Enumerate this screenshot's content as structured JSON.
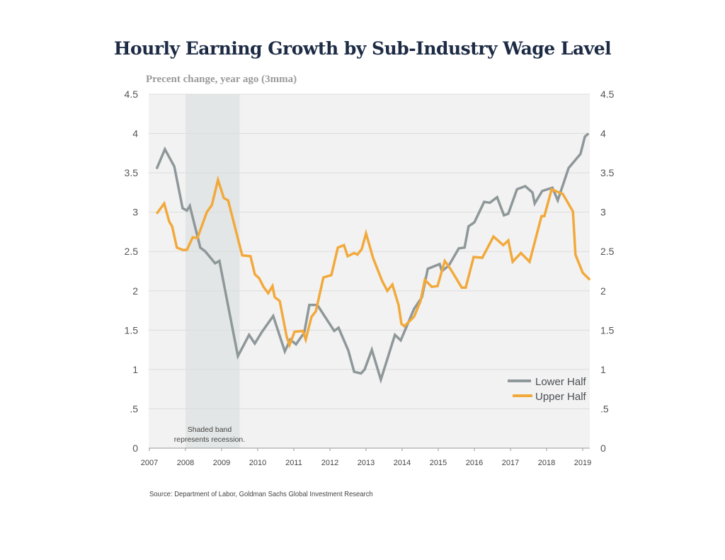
{
  "chart_data": {
    "type": "line",
    "title": "Hourly Earning Growth by Sub-Industry Wage Lavel",
    "subtitle": "Precent change, year ago (3mma)",
    "source": "Source: Department of Labor, Goldman Sachs Global Investment Research",
    "xlabel": "",
    "ylabel": "",
    "xlim": [
      2007,
      2019.2
    ],
    "ylim": [
      0,
      4.5
    ],
    "grid": true,
    "legend_position": "bottom-right",
    "x_ticks": [
      "2007",
      "2008",
      "2009",
      "2010",
      "2011",
      "2012",
      "2013",
      "2014",
      "2015",
      "2016",
      "2017",
      "2018",
      "2019"
    ],
    "y_ticks_left": [
      "0",
      ".5",
      "1",
      "1.5",
      "2",
      "2.5",
      "3",
      "3.5",
      "4",
      "4.5"
    ],
    "y_ticks_right": [
      "0",
      ".5",
      "1",
      "1.5",
      "2",
      "2.5",
      "3",
      "3.5",
      "4",
      "4.5"
    ],
    "y_tick_values": [
      0,
      0.5,
      1,
      1.5,
      2,
      2.5,
      3,
      3.5,
      4,
      4.5
    ],
    "recession": {
      "start": 2008.0,
      "end": 2009.5,
      "label_line1": "Shaded band",
      "label_line2": "represents recession."
    },
    "series": [
      {
        "name": "Lower Half",
        "color": "#8e9799",
        "points": [
          [
            2007.2,
            3.55
          ],
          [
            2007.43,
            3.8
          ],
          [
            2007.69,
            3.58
          ],
          [
            2007.92,
            3.05
          ],
          [
            2008.04,
            3.02
          ],
          [
            2008.12,
            3.08
          ],
          [
            2008.41,
            2.55
          ],
          [
            2008.55,
            2.5
          ],
          [
            2008.82,
            2.35
          ],
          [
            2008.94,
            2.38
          ],
          [
            2009.45,
            1.17
          ],
          [
            2009.76,
            1.44
          ],
          [
            2009.92,
            1.33
          ],
          [
            2010.12,
            1.48
          ],
          [
            2010.43,
            1.68
          ],
          [
            2010.75,
            1.23
          ],
          [
            2010.9,
            1.38
          ],
          [
            2011.06,
            1.32
          ],
          [
            2011.29,
            1.47
          ],
          [
            2011.43,
            1.82
          ],
          [
            2011.65,
            1.82
          ],
          [
            2012.12,
            1.49
          ],
          [
            2012.24,
            1.53
          ],
          [
            2012.51,
            1.24
          ],
          [
            2012.67,
            0.97
          ],
          [
            2012.86,
            0.95
          ],
          [
            2012.96,
            1.0
          ],
          [
            2013.16,
            1.25
          ],
          [
            2013.41,
            0.87
          ],
          [
            2013.8,
            1.44
          ],
          [
            2013.96,
            1.37
          ],
          [
            2014.33,
            1.77
          ],
          [
            2014.55,
            1.92
          ],
          [
            2014.71,
            2.28
          ],
          [
            2015.04,
            2.34
          ],
          [
            2015.1,
            2.25
          ],
          [
            2015.29,
            2.32
          ],
          [
            2015.57,
            2.54
          ],
          [
            2015.73,
            2.55
          ],
          [
            2015.84,
            2.82
          ],
          [
            2016.0,
            2.87
          ],
          [
            2016.27,
            3.13
          ],
          [
            2016.43,
            3.12
          ],
          [
            2016.63,
            3.19
          ],
          [
            2016.82,
            2.96
          ],
          [
            2016.94,
            2.98
          ],
          [
            2017.18,
            3.29
          ],
          [
            2017.41,
            3.33
          ],
          [
            2017.61,
            3.25
          ],
          [
            2017.67,
            3.11
          ],
          [
            2017.88,
            3.27
          ],
          [
            2018.16,
            3.31
          ],
          [
            2018.31,
            3.15
          ],
          [
            2018.61,
            3.56
          ],
          [
            2018.94,
            3.74
          ],
          [
            2019.06,
            3.96
          ],
          [
            2019.16,
            4.0
          ]
        ]
      },
      {
        "name": "Upper Half",
        "color": "#f2a93b",
        "points": [
          [
            2007.2,
            2.98
          ],
          [
            2007.41,
            3.11
          ],
          [
            2007.55,
            2.88
          ],
          [
            2007.63,
            2.82
          ],
          [
            2007.76,
            2.55
          ],
          [
            2007.92,
            2.52
          ],
          [
            2008.04,
            2.52
          ],
          [
            2008.2,
            2.68
          ],
          [
            2008.33,
            2.67
          ],
          [
            2008.59,
            3.0
          ],
          [
            2008.73,
            3.09
          ],
          [
            2008.9,
            3.41
          ],
          [
            2009.06,
            3.18
          ],
          [
            2009.18,
            3.15
          ],
          [
            2009.57,
            2.45
          ],
          [
            2009.8,
            2.44
          ],
          [
            2009.92,
            2.21
          ],
          [
            2010.04,
            2.16
          ],
          [
            2010.16,
            2.05
          ],
          [
            2010.29,
            1.97
          ],
          [
            2010.41,
            2.06
          ],
          [
            2010.47,
            1.92
          ],
          [
            2010.61,
            1.87
          ],
          [
            2010.8,
            1.42
          ],
          [
            2010.88,
            1.31
          ],
          [
            2011.02,
            1.48
          ],
          [
            2011.25,
            1.49
          ],
          [
            2011.33,
            1.38
          ],
          [
            2011.49,
            1.67
          ],
          [
            2011.61,
            1.74
          ],
          [
            2011.82,
            2.17
          ],
          [
            2012.04,
            2.2
          ],
          [
            2012.22,
            2.55
          ],
          [
            2012.39,
            2.58
          ],
          [
            2012.49,
            2.44
          ],
          [
            2012.67,
            2.48
          ],
          [
            2012.76,
            2.46
          ],
          [
            2012.88,
            2.53
          ],
          [
            2013.0,
            2.73
          ],
          [
            2013.2,
            2.41
          ],
          [
            2013.33,
            2.26
          ],
          [
            2013.45,
            2.12
          ],
          [
            2013.59,
            2.0
          ],
          [
            2013.73,
            2.08
          ],
          [
            2013.9,
            1.82
          ],
          [
            2013.98,
            1.58
          ],
          [
            2014.06,
            1.55
          ],
          [
            2014.33,
            1.67
          ],
          [
            2014.51,
            1.87
          ],
          [
            2014.63,
            2.14
          ],
          [
            2014.82,
            2.05
          ],
          [
            2014.98,
            2.06
          ],
          [
            2015.18,
            2.38
          ],
          [
            2015.35,
            2.27
          ],
          [
            2015.65,
            2.04
          ],
          [
            2015.76,
            2.04
          ],
          [
            2015.98,
            2.43
          ],
          [
            2016.22,
            2.42
          ],
          [
            2016.53,
            2.69
          ],
          [
            2016.8,
            2.58
          ],
          [
            2016.94,
            2.64
          ],
          [
            2017.06,
            2.37
          ],
          [
            2017.29,
            2.48
          ],
          [
            2017.53,
            2.37
          ],
          [
            2017.86,
            2.95
          ],
          [
            2017.94,
            2.95
          ],
          [
            2018.14,
            3.29
          ],
          [
            2018.45,
            3.23
          ],
          [
            2018.73,
            3.01
          ],
          [
            2018.8,
            2.46
          ],
          [
            2019.0,
            2.23
          ],
          [
            2019.2,
            2.14
          ]
        ]
      }
    ]
  }
}
